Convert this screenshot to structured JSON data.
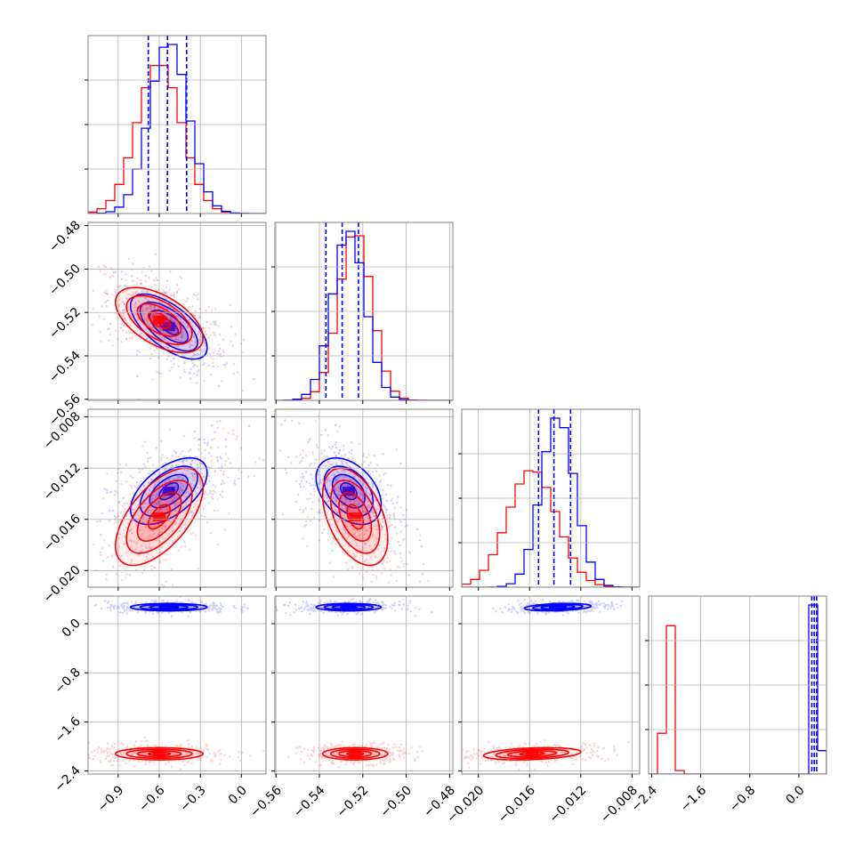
{
  "chart_data": {
    "type": "corner",
    "title": "",
    "params": [
      "",
      "",
      "",
      ""
    ],
    "ticks": [
      {
        "values": [
          -0.9,
          -0.6,
          -0.3,
          0.0
        ],
        "labels": [
          "−0.9",
          "−0.6",
          "−0.3",
          "0.0"
        ],
        "range": [
          -1.12,
          0.18
        ]
      },
      {
        "values": [
          -0.56,
          -0.54,
          -0.52,
          -0.5,
          -0.48
        ],
        "labels": [
          "−0.56",
          "−0.54",
          "−0.52",
          "−0.50",
          "−0.48"
        ],
        "range": [
          -0.5605,
          -0.4785
        ]
      },
      {
        "values": [
          -0.02,
          -0.016,
          -0.012,
          -0.008
        ],
        "labels": [
          "−0.020",
          "−0.016",
          "−0.012",
          "−0.008"
        ],
        "range": [
          -0.0213,
          -0.0074
        ]
      },
      {
        "values": [
          -2.4,
          -1.6,
          -0.8,
          0.0
        ],
        "labels": [
          "−2.4",
          "−1.6",
          "−0.8",
          "0.0"
        ],
        "range": [
          -2.45,
          0.45
        ]
      }
    ],
    "series": [
      {
        "color": "#0000ff",
        "stats": [
          {
            "mean": -0.53,
            "std": 0.14
          },
          {
            "mean": -0.5265,
            "std": 0.0075
          },
          {
            "mean": -0.0138,
            "std": 0.0013
          },
          {
            "mean": 0.27,
            "std": 0.03
          }
        ],
        "quantiles": [
          [
            -0.68,
            -0.54,
            -0.4
          ],
          [
            -0.537,
            -0.5295,
            -0.522
          ],
          [
            -0.0153,
            -0.0141,
            -0.0128
          ],
          [
            0.21,
            0.25,
            0.29
          ]
        ]
      },
      {
        "color": "#ff0000",
        "stats": [
          {
            "mean": -0.6,
            "std": 0.16
          },
          {
            "mean": -0.5235,
            "std": 0.0075
          },
          {
            "mean": -0.0158,
            "std": 0.0019
          },
          {
            "mean": -2.12,
            "std": 0.05
          }
        ],
        "quantiles": []
      }
    ],
    "correlations": [
      {
        "pair": [
          0,
          1
        ],
        "blue": -0.65,
        "red": -0.55
      },
      {
        "pair": [
          0,
          2
        ],
        "blue": 0.55,
        "red": 0.6
      },
      {
        "pair": [
          1,
          2
        ],
        "blue": -0.4,
        "red": -0.45
      },
      {
        "pair": [
          0,
          3
        ],
        "blue": 0.0,
        "red": 0.0
      },
      {
        "pair": [
          1,
          3
        ],
        "blue": 0.0,
        "red": 0.0
      },
      {
        "pair": [
          2,
          3
        ],
        "blue": 0.3,
        "red": 0.3
      }
    ],
    "grid": true,
    "legend": "none"
  },
  "colors": {
    "blue": "#0000ff",
    "red": "#ff0000",
    "grid": "#b0b0b0",
    "frame": "#808080"
  }
}
